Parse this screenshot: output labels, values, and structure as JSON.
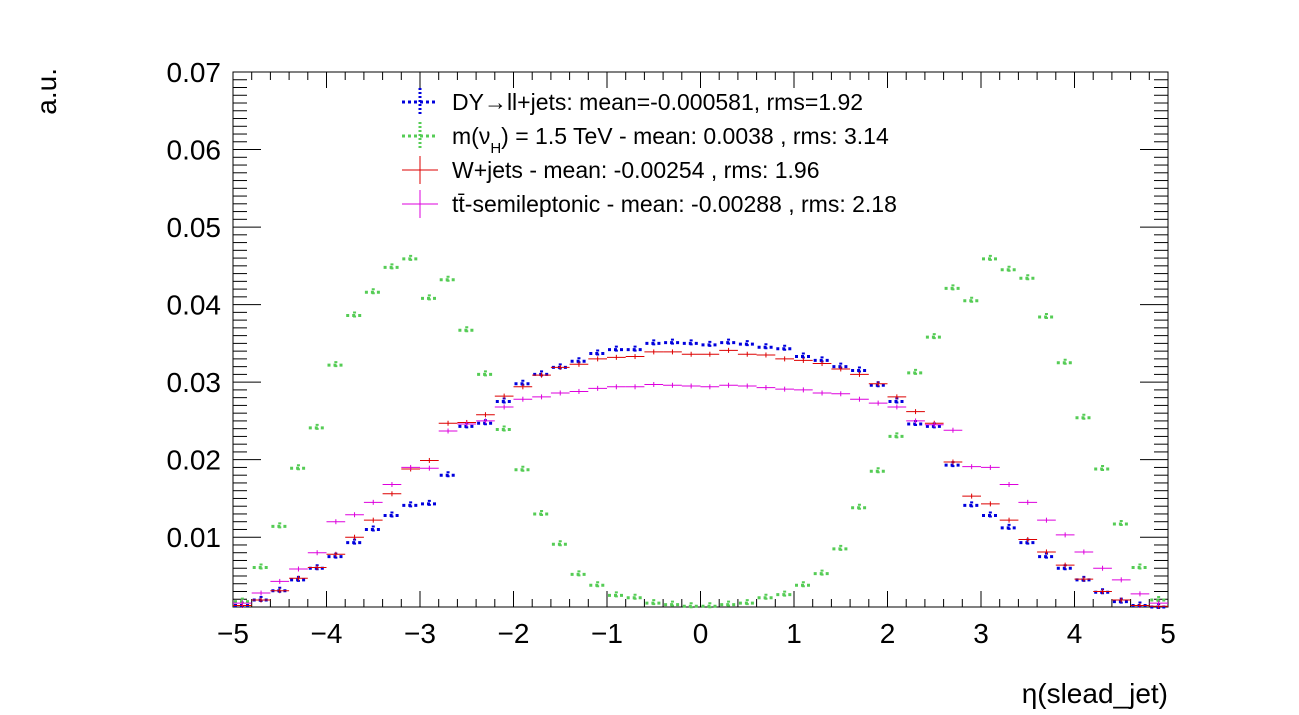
{
  "chart_data": {
    "type": "scatter",
    "title": "",
    "xlabel": "η(slead_jet)",
    "ylabel": "a.u.",
    "xlim": [
      -5,
      5
    ],
    "ylim": [
      0.001,
      0.07
    ],
    "x_ticks": [
      "−5",
      "−4",
      "−3",
      "−2",
      "−1",
      "0",
      "1",
      "2",
      "3",
      "4",
      "5"
    ],
    "y_ticks": [
      "0.01",
      "0.02",
      "0.03",
      "0.04",
      "0.05",
      "0.06",
      "0.07"
    ],
    "x_tick_values": [
      -5,
      -4,
      -3,
      -2,
      -1,
      0,
      1,
      2,
      3,
      4,
      5
    ],
    "y_tick_values": [
      0.01,
      0.02,
      0.03,
      0.04,
      0.05,
      0.06,
      0.07
    ],
    "bin_width": 0.2,
    "x": [
      -4.9,
      -4.7,
      -4.5,
      -4.3,
      -4.1,
      -3.9,
      -3.7,
      -3.5,
      -3.3,
      -3.1,
      -2.9,
      -2.7,
      -2.5,
      -2.3,
      -2.1,
      -1.9,
      -1.7,
      -1.5,
      -1.3,
      -1.1,
      -0.9,
      -0.7,
      -0.5,
      -0.3,
      -0.1,
      0.1,
      0.3,
      0.5,
      0.7,
      0.9,
      1.1,
      1.3,
      1.5,
      1.7,
      1.9,
      2.1,
      2.3,
      2.5,
      2.7,
      2.9,
      3.1,
      3.3,
      3.5,
      3.7,
      3.9,
      4.1,
      4.3,
      4.5,
      4.7,
      4.9
    ],
    "legend_position": "top",
    "series": [
      {
        "name": "DY→ll+jets: mean=-0.000581, rms=1.92",
        "color": "#0000dd",
        "style": "dotted",
        "values": [
          0.0012,
          0.0019,
          0.0031,
          0.0045,
          0.006,
          0.0075,
          0.0093,
          0.011,
          0.0128,
          0.0141,
          0.0143,
          0.018,
          0.0243,
          0.0247,
          0.0275,
          0.0298,
          0.031,
          0.0319,
          0.0327,
          0.0337,
          0.0342,
          0.0342,
          0.035,
          0.0351,
          0.035,
          0.0348,
          0.0351,
          0.0349,
          0.0345,
          0.0343,
          0.0333,
          0.0328,
          0.032,
          0.0315,
          0.0296,
          0.0275,
          0.0246,
          0.0243,
          0.0193,
          0.0141,
          0.0128,
          0.0112,
          0.0093,
          0.0075,
          0.006,
          0.0045,
          0.0029,
          0.0017,
          0.0012,
          0.001
        ]
      },
      {
        "name": "m(ν",
        "name_sub": "H",
        "name_tail": ") = 1.5 TeV - mean: 0.0038 , rms: 3.14",
        "color": "#55cc55",
        "style": "dotted",
        "values": [
          0.0017,
          0.0061,
          0.0114,
          0.0189,
          0.0241,
          0.0322,
          0.0386,
          0.0416,
          0.0448,
          0.0459,
          0.0408,
          0.0432,
          0.0367,
          0.031,
          0.0239,
          0.0187,
          0.013,
          0.0091,
          0.0052,
          0.0038,
          0.0025,
          0.0022,
          0.0015,
          0.0013,
          0.0011,
          0.0011,
          0.0013,
          0.0015,
          0.0022,
          0.0026,
          0.0038,
          0.0053,
          0.0085,
          0.0138,
          0.0185,
          0.023,
          0.0312,
          0.0358,
          0.0421,
          0.0405,
          0.0459,
          0.0445,
          0.0434,
          0.0384,
          0.0325,
          0.0254,
          0.0188,
          0.0117,
          0.0061,
          0.0019
        ]
      },
      {
        "name": "W+jets - mean: -0.00254 , rms: 1.96",
        "color": "#dd0000",
        "style": "cross",
        "values": [
          0.0012,
          0.0019,
          0.0031,
          0.0047,
          0.0061,
          0.0078,
          0.01,
          0.0122,
          0.0156,
          0.0188,
          0.0199,
          0.0247,
          0.0248,
          0.0258,
          0.0282,
          0.0294,
          0.0309,
          0.0319,
          0.0323,
          0.033,
          0.0332,
          0.0333,
          0.0339,
          0.0339,
          0.0336,
          0.0336,
          0.0341,
          0.0336,
          0.0335,
          0.033,
          0.0328,
          0.0324,
          0.0317,
          0.031,
          0.0298,
          0.0281,
          0.0262,
          0.0247,
          0.0197,
          0.0153,
          0.0143,
          0.0122,
          0.0097,
          0.0081,
          0.0064,
          0.0046,
          0.003,
          0.0019,
          0.0012,
          0.0011
        ]
      },
      {
        "name": "tt̄-semileptonic - mean: -0.00288 , rms: 2.18",
        "color": "#dd00dd",
        "style": "cross",
        "values": [
          0.0015,
          0.0028,
          0.0043,
          0.0059,
          0.008,
          0.012,
          0.0129,
          0.0145,
          0.0168,
          0.019,
          0.0189,
          0.0237,
          0.0246,
          0.025,
          0.0268,
          0.0278,
          0.0281,
          0.0286,
          0.0288,
          0.0292,
          0.0294,
          0.0294,
          0.0297,
          0.0296,
          0.0295,
          0.0294,
          0.0296,
          0.0295,
          0.0293,
          0.0291,
          0.029,
          0.0286,
          0.0285,
          0.0278,
          0.0273,
          0.0268,
          0.025,
          0.0245,
          0.0238,
          0.0191,
          0.019,
          0.0168,
          0.0145,
          0.0122,
          0.0103,
          0.0081,
          0.006,
          0.0045,
          0.0027,
          0.0015
        ]
      }
    ]
  }
}
